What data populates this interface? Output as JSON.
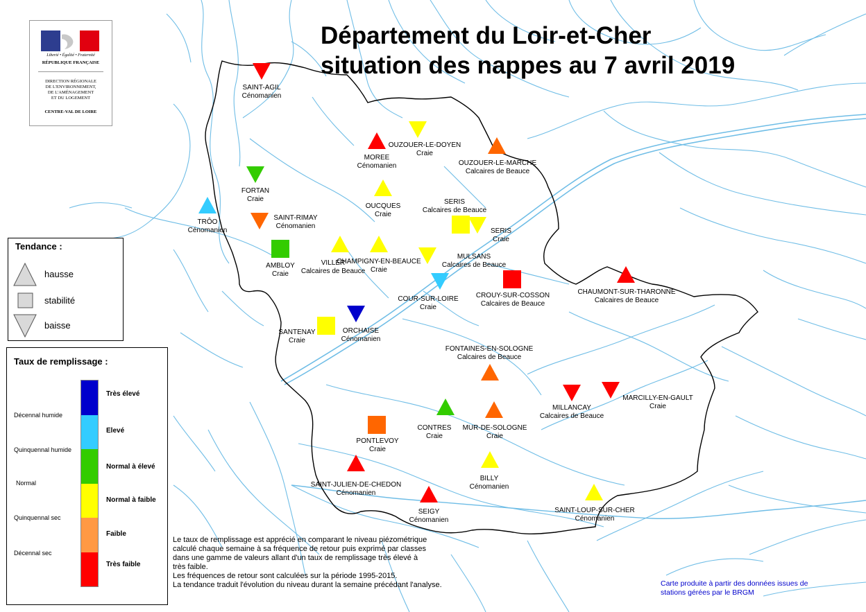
{
  "title": {
    "line1": "Département du Loir-et-Cher",
    "line2": "situation des nappes au 7 avril 2019"
  },
  "logo": {
    "motto": "Liberté • Égalité • Fraternité",
    "republic": "RÉPUBLIQUE FRANÇAISE",
    "direction": "DIRECTION RÉGIONALE\nDE L'ENVIRONNEMENT,\nDE L'AMÉNAGEMENT\nET DU LOGEMENT",
    "region": "CENTRE-VAL DE LOIRE",
    "colors": {
      "blue": "#2d3d8f",
      "white": "#ffffff",
      "red": "#e1000f"
    }
  },
  "colors": {
    "tres_eleve": "#0000cc",
    "eleve": "#33ccff",
    "normal_eleve": "#33cc00",
    "normal_faible": "#ffff00",
    "faible": "#ff6600",
    "faible_legend": "#ff9944",
    "tres_faible": "#ff0000",
    "neutral": "#d9d9d9",
    "river": "#6fbde6",
    "border": "#000000",
    "credit": "#0000cc"
  },
  "stations": [
    {
      "name": "SAINT-AGIL",
      "aquifer": "Cénomanien",
      "trend": "baisse",
      "level": "tres_faible"
    },
    {
      "name": "OUZOUER-LE-DOYEN",
      "aquifer": "Craie",
      "trend": "baisse",
      "level": "normal_faible"
    },
    {
      "name": "MOREE",
      "aquifer": "Cénomanien",
      "trend": "hausse",
      "level": "tres_faible"
    },
    {
      "name": "OUZOUER-LE-MARCHE",
      "aquifer": "Calcaires de Beauce",
      "trend": "hausse",
      "level": "faible"
    },
    {
      "name": "FORTAN",
      "aquifer": "Craie",
      "trend": "baisse",
      "level": "normal_eleve"
    },
    {
      "name": "OUCQUES",
      "aquifer": "Craie",
      "trend": "hausse",
      "level": "normal_faible"
    },
    {
      "name": "SERIS",
      "aquifer": "Calcaires de Beauce",
      "trend": "stabilité",
      "level": "normal_faible"
    },
    {
      "name": "SERIS",
      "aquifer": "Craie",
      "trend": "baisse",
      "level": "normal_faible"
    },
    {
      "name": "TRÔO",
      "aquifer": "Cénomanien",
      "trend": "hausse",
      "level": "eleve"
    },
    {
      "name": "SAINT-RIMAY",
      "aquifer": "Cénomanien",
      "trend": "baisse",
      "level": "faible"
    },
    {
      "name": "AMBLOY",
      "aquifer": "Craie",
      "trend": "stabilité",
      "level": "normal_eleve"
    },
    {
      "name": "VILLER",
      "aquifer": "Calcaires de Beauce",
      "trend": "hausse",
      "level": "normal_faible"
    },
    {
      "name": "CHAMPIGNY-EN-BEAUCE",
      "aquifer": "Craie",
      "trend": "hausse",
      "level": "normal_faible"
    },
    {
      "name": "MULSANS",
      "aquifer": "Calcaires de Beauce",
      "trend": "baisse",
      "level": "normal_faible"
    },
    {
      "name": "COUR-SUR-LOIRE",
      "aquifer": "Craie",
      "trend": "baisse",
      "level": "eleve"
    },
    {
      "name": "CROUY-SUR-COSSON",
      "aquifer": "Calcaires de Beauce",
      "trend": "stabilité",
      "level": "tres_faible"
    },
    {
      "name": "CHAUMONT-SUR-THARONNE",
      "aquifer": "Calcaires de Beauce",
      "trend": "hausse",
      "level": "tres_faible"
    },
    {
      "name": "SANTENAY",
      "aquifer": "Craie",
      "trend": "stabilité",
      "level": "normal_faible"
    },
    {
      "name": "ORCHAISE",
      "aquifer": "Cénomanien",
      "trend": "baisse",
      "level": "tres_eleve"
    },
    {
      "name": "FONTAINES-EN-SOLOGNE",
      "aquifer": "Calcaires de Beauce",
      "trend": "hausse",
      "level": "faible"
    },
    {
      "name": "MILLANCAY",
      "aquifer": "Calcaires de Beauce",
      "trend": "baisse",
      "level": "tres_faible"
    },
    {
      "name": "MARCILLY-EN-GAULT",
      "aquifer": "Craie",
      "trend": "baisse",
      "level": "tres_faible"
    },
    {
      "name": "CONTRES",
      "aquifer": "Craie",
      "trend": "hausse",
      "level": "normal_eleve"
    },
    {
      "name": "MUR-DE-SOLOGNE",
      "aquifer": "Craie",
      "trend": "hausse",
      "level": "faible"
    },
    {
      "name": "PONTLEVOY",
      "aquifer": "Craie",
      "trend": "stabilité",
      "level": "faible"
    },
    {
      "name": "BILLY",
      "aquifer": "Cénomanien",
      "trend": "hausse",
      "level": "normal_faible"
    },
    {
      "name": "SAINT-JULIEN-DE-CHEDON",
      "aquifer": "Cénomanien",
      "trend": "hausse",
      "level": "tres_faible"
    },
    {
      "name": "SEIGY",
      "aquifer": "Cénomanien",
      "trend": "hausse",
      "level": "tres_faible"
    },
    {
      "name": "SAINT-LOUP-SUR-CHER",
      "aquifer": "Cénomanien",
      "trend": "hausse",
      "level": "normal_faible"
    }
  ],
  "legend_trend": {
    "title": "Tendance :",
    "items": [
      {
        "label": "hausse",
        "shape": "triangle-up"
      },
      {
        "label": "stabilité",
        "shape": "square"
      },
      {
        "label": "baisse",
        "shape": "triangle-down"
      }
    ]
  },
  "legend_fill": {
    "title": "Taux de remplissage :",
    "classes": [
      {
        "label": "Très élevé",
        "color": "#0000cc"
      },
      {
        "label": "Elevé",
        "color": "#33ccff"
      },
      {
        "label": "Normal à élevé",
        "color": "#33cc00"
      },
      {
        "label": "Normal à faible",
        "color": "#ffff00"
      },
      {
        "label": "Faible",
        "color": "#ff9944"
      },
      {
        "label": "Très faible",
        "color": "#ff0000"
      }
    ],
    "frequencies": [
      "Décennal humide",
      "Quinquennal humide",
      "Normal",
      "Quinquennal sec",
      "Décennal sec"
    ]
  },
  "note": {
    "p1": "Le taux de remplissage est apprécié en comparant le niveau piézométrique\ncalculé chaque semaine à sa fréquence de retour puis exprimé par classes\ndans une gamme de valeurs allant d'un taux de remplissage très élevé  à\ntrès faible.",
    "p2": "Les fréquences de retour sont calculées sur la période 1995-2015.",
    "p3": "La tendance traduit l'évolution du niveau durant la semaine précédant l'analyse."
  },
  "credit": "Carte produite à partir des données issues de\nstations gérées par le BRGM"
}
